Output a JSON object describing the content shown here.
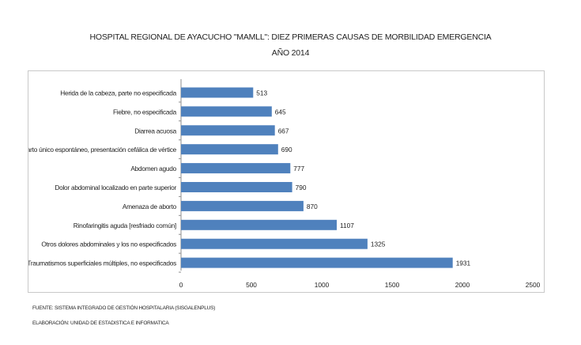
{
  "chart_data": {
    "type": "bar",
    "orientation": "horizontal",
    "title": "HOSPITAL REGIONAL DE AYACUCHO \"MAMLL\": DIEZ PRIMERAS CAUSAS DE MORBILIDAD EMERGENCIA",
    "subtitle": "AÑO 2014",
    "categories": [
      "Herida de la cabeza, parte no especificada",
      "Fiebre, no especificada",
      "Diarrea acuosa",
      "Parto único espontáneo, presentación cefálica de vértice",
      "Abdomen agudo",
      "Dolor abdominal localizado en parte superior",
      "Amenaza de aborto",
      "Rinofaringitis aguda [resfriado común]",
      "Otros dolores abdominales y los no especificados",
      "Traumatismos superficiales múltiples, no especificados"
    ],
    "values": [
      513,
      645,
      667,
      690,
      777,
      790,
      870,
      1107,
      1325,
      1931
    ],
    "xlim": [
      0,
      2500
    ],
    "xticks": [
      0,
      500,
      1000,
      1500,
      2000,
      2500
    ],
    "grid": false,
    "data_labels": true,
    "bar_color": "#4f81bd"
  },
  "footnotes": {
    "source": "FUENTE: SISTEMA INTEGRADO DE GESTIÓN HOSPITALARIA (SISGALENPLUS)",
    "credit": "ELABORACIÓN: UNIDAD DE ESTADISTICA E INFORMATICA"
  }
}
